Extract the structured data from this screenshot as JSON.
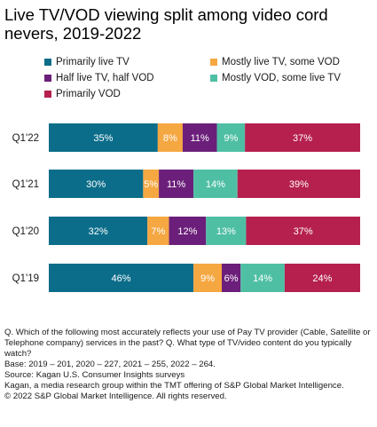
{
  "title": "Live TV/VOD viewing split among video cord nevers, 2019-2022",
  "chart_data": {
    "type": "bar",
    "orientation": "horizontal",
    "stacked": "100%",
    "title": "Live TV/VOD viewing split among video cord nevers, 2019-2022",
    "categories": [
      "Q1'22",
      "Q1'21",
      "Q1'20",
      "Q1'19"
    ],
    "legend_position": "top",
    "series": [
      {
        "name": "Primarily live TV",
        "color": "#0b6d8a",
        "values": [
          35,
          30,
          32,
          46
        ],
        "labels": [
          "35%",
          "30%",
          "32%",
          "46%"
        ]
      },
      {
        "name": "Mostly live TV, some VOD",
        "color": "#f5a742",
        "values": [
          8,
          5,
          7,
          9
        ],
        "labels": [
          "8%",
          "5%",
          "7%",
          "9%"
        ]
      },
      {
        "name": "Half live TV, half VOD",
        "color": "#6b1f7a",
        "values": [
          11,
          11,
          12,
          6
        ],
        "labels": [
          "11%",
          "11%",
          "12%",
          "6%"
        ]
      },
      {
        "name": "Mostly VOD, some live TV",
        "color": "#4fbfa4",
        "values": [
          9,
          14,
          13,
          14
        ],
        "labels": [
          "9%",
          "14%",
          "13%",
          "14%"
        ]
      },
      {
        "name": "Primarily VOD",
        "color": "#b5204f",
        "values": [
          37,
          39,
          37,
          24
        ],
        "labels": [
          "37%",
          "39%",
          "37%",
          "24%"
        ]
      }
    ]
  },
  "notes": [
    "Q. Which of the following most accurately reflects your use of Pay TV provider (Cable, Satellite or Telephone company) services in the past? Q.  What type of TV/video content do you typically watch?",
    "Base: 2019 – 201, 2020 – 227, 2021 – 255, 2022 – 264.",
    "Source: Kagan U.S. Consumer Insights surveys",
    "Kagan, a media research group within the TMT offering of S&P Global Market Intelligence.",
    "© 2022 S&P Global Market Intelligence.  All rights reserved."
  ]
}
